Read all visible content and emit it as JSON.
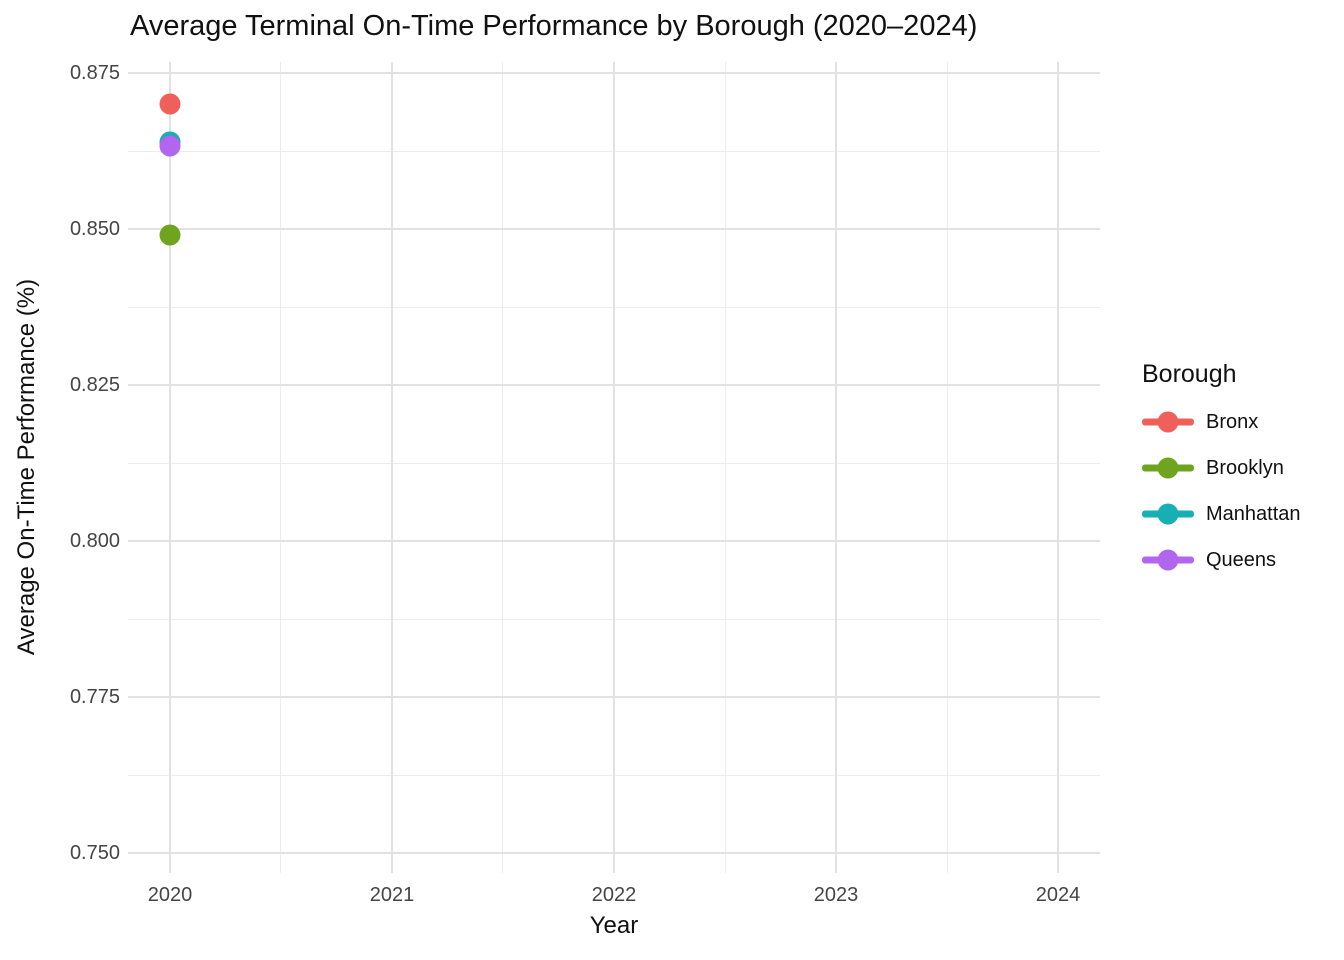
{
  "chart_data": {
    "type": "scatter",
    "title": "Average Terminal On-Time Performance by Borough (2020–2024)",
    "xlabel": "Year",
    "ylabel": "Average On-Time Performance (%)",
    "legend_title": "Borough",
    "legend_position": "right",
    "grid": true,
    "x_ticks": [
      2020,
      2021,
      2022,
      2023,
      2024
    ],
    "x_tick_labels": [
      "2020",
      "2021",
      "2022",
      "2023",
      "2024"
    ],
    "x_minor_ticks": [
      2020.5,
      2021.5,
      2022.5,
      2023.5
    ],
    "y_ticks": [
      0.875,
      0.85,
      0.825,
      0.8,
      0.775,
      0.75
    ],
    "y_tick_labels": [
      "0.875",
      "0.850",
      "0.825",
      "0.800",
      "0.775",
      "0.750"
    ],
    "y_minor_ticks": [
      0.8625,
      0.8375,
      0.8125,
      0.7875,
      0.7625
    ],
    "xlim": [
      2019.811,
      2024.189
    ],
    "ylim": [
      0.7468,
      0.8768
    ],
    "series": [
      {
        "name": "Bronx",
        "color": "#F0605A",
        "x": [
          2020
        ],
        "y": [
          0.87
        ]
      },
      {
        "name": "Brooklyn",
        "color": "#6EA41E",
        "x": [
          2020
        ],
        "y": [
          0.849
        ]
      },
      {
        "name": "Manhattan",
        "color": "#17AEB4",
        "x": [
          2020
        ],
        "y": [
          0.864
        ]
      },
      {
        "name": "Queens",
        "color": "#B266F0",
        "x": [
          2020
        ],
        "y": [
          0.8633
        ]
      }
    ],
    "colors": {
      "grid_major": "#E2E2E2",
      "grid_minor": "#ECECEC",
      "tick_label": "#454545",
      "text": "#111111",
      "background": "#FFFFFF"
    }
  }
}
